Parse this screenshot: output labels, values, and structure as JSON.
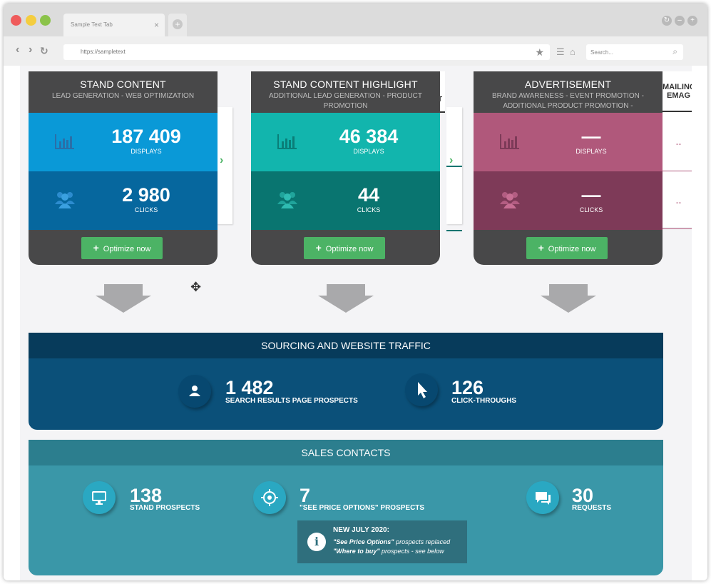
{
  "browser": {
    "tab_title": "Sample Text Tab",
    "url": "https://sampletext",
    "search_placeholder": "Search..."
  },
  "cards": [
    {
      "title": "STAND CONTENT",
      "subtitle": "LEAD GENERATION - WEB OPTIMIZATION",
      "displays_value": "187 409",
      "displays_label": "DISPLAYS",
      "clicks_value": "2 980",
      "clicks_label": "CLICKS",
      "button_label": "Optimize now",
      "colors": {
        "top": "#0a99d7",
        "bottom": "#06679e",
        "icon": "#4a86bd"
      }
    },
    {
      "title": "STAND CONTENT HIGHLIGHT",
      "subtitle": "ADDITIONAL LEAD GENERATION - PRODUCT PROMOTION",
      "displays_value": "46 384",
      "displays_label": "DISPLAYS",
      "clicks_value": "44",
      "clicks_label": "CLICKS",
      "button_label": "Optimize now",
      "colors": {
        "top": "#12b5ad",
        "bottom": "#097570",
        "icon": "#45b6ad"
      }
    },
    {
      "title": "ADVERTISEMENT",
      "subtitle": "BRAND AWARENESS - EVENT PROMOTION - ADDITIONAL PRODUCT PROMOTION - ADDITIONAL LEAD GENERATION",
      "displays_value": "—",
      "displays_label": "DISPLAYS",
      "clicks_value": "—",
      "clicks_label": "CLICKS",
      "button_label": "Optimize now",
      "colors": {
        "top": "#b0587b",
        "bottom": "#7e3a58",
        "icon": "#c06a8c"
      }
    }
  ],
  "peek_cards": {
    "second_partial_header": "T",
    "mailing_header_line1": "MAILING",
    "mailing_header_line2": "EMAG",
    "mailing_displays": "--",
    "mailing_clicks": "--"
  },
  "traffic": {
    "title": "SOURCING AND WEBSITE TRAFFIC",
    "stats": [
      {
        "value": "1 482",
        "label": "SEARCH RESULTS PAGE PROSPECTS",
        "icon": "user-icon"
      },
      {
        "value": "126",
        "label": "CLICK-THROUGHS",
        "icon": "pointer-icon"
      }
    ]
  },
  "sales": {
    "title": "SALES CONTACTS",
    "stats": [
      {
        "value": "138",
        "label": "STAND PROSPECTS",
        "icon": "monitor-icon"
      },
      {
        "value": "7",
        "label": "\"SEE PRICE OPTIONS\" PROSPECTS",
        "icon": "target-icon"
      },
      {
        "value": "30",
        "label": "REQUESTS",
        "icon": "chat-icon"
      }
    ],
    "notice": {
      "title": "NEW JULY 2020:",
      "line1_em": "\"See Price Options\"",
      "line1_rest": " prospects replaced",
      "line2_em": "\"Where to buy\"",
      "line2_rest": " prospects - see below"
    }
  }
}
